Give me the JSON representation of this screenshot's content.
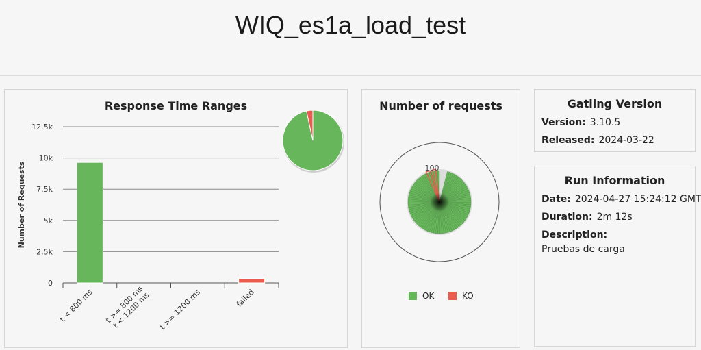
{
  "header": {
    "title": "WIQ_es1a_load_test"
  },
  "response_time": {
    "title": "Response Time Ranges",
    "chart_data": {
      "type": "bar",
      "title": "Response Time Ranges",
      "ylabel": "Number of Requests",
      "xlabel": "",
      "categories": [
        "t < 800 ms",
        "t >= 800 ms\nt < 1200 ms",
        "t >= 1200 ms",
        "failed"
      ],
      "values": [
        9640,
        0,
        0,
        340
      ],
      "yticks": [
        "0",
        "2.5k",
        "5k",
        "7.5k",
        "10k",
        "12.5k"
      ],
      "ylim": [
        0,
        12500
      ],
      "colors": [
        "#68b65c",
        "#68b65c",
        "#68b65c",
        "#ec5b4f"
      ],
      "grid": true
    },
    "pie_chart_data": {
      "type": "pie",
      "values": [
        9640,
        340
      ],
      "colors": [
        "#68b65c",
        "#ec5b4f"
      ]
    }
  },
  "requests": {
    "title": "Number of requests",
    "chart_data": {
      "type": "pie",
      "values": [
        96,
        4
      ],
      "radial_tick_label": "100",
      "legend": [
        "OK",
        "KO"
      ],
      "legend_placement": "bottom",
      "colors": [
        "#68b65c",
        "#ec5b4f"
      ]
    },
    "legend_ok": "OK",
    "legend_ko": "KO"
  },
  "gatling": {
    "title": "Gatling Version",
    "version_label": "Version:",
    "version_value": "3.10.5",
    "released_label": "Released:",
    "released_value": "2024-03-22"
  },
  "run_info": {
    "title": "Run Information",
    "date_label": "Date:",
    "date_value": "2024-04-27 15:24:12 GMT",
    "duration_label": "Duration:",
    "duration_value": "2m 12s",
    "description_label": "Description:",
    "description_value": "Pruebas de carga"
  }
}
